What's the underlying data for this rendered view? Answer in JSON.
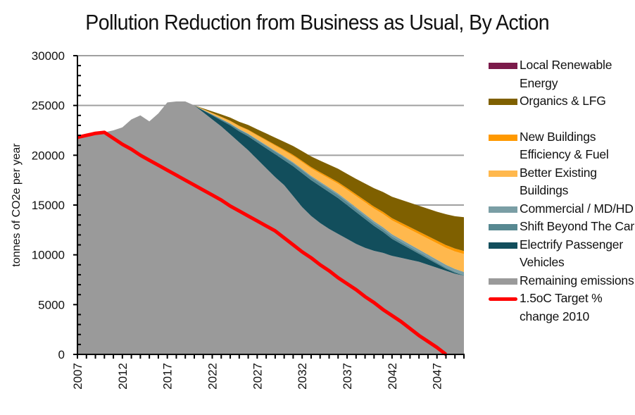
{
  "chart_data": {
    "type": "area",
    "stacked": true,
    "title": "Pollution Reduction from Business as Usual, By Action",
    "xlabel": "",
    "ylabel": "tonnes of CO2e per year",
    "ylim": [
      0,
      30000
    ],
    "yticks": [
      "0",
      "5000",
      "10000",
      "15000",
      "20000",
      "25000",
      "30000"
    ],
    "xlim": [
      2007,
      2050
    ],
    "xticks": [
      "2007",
      "2012",
      "2017",
      "2022",
      "2027",
      "2032",
      "2037",
      "2042",
      "2047"
    ],
    "grid": "horizontal",
    "legend_position": "right",
    "x": [
      2007,
      2008,
      2009,
      2010,
      2011,
      2012,
      2013,
      2014,
      2015,
      2016,
      2017,
      2018,
      2019,
      2020,
      2021,
      2022,
      2023,
      2024,
      2025,
      2026,
      2027,
      2028,
      2029,
      2030,
      2031,
      2032,
      2033,
      2034,
      2035,
      2036,
      2037,
      2038,
      2039,
      2040,
      2041,
      2042,
      2043,
      2044,
      2045,
      2046,
      2047,
      2048,
      2049,
      2050
    ],
    "series": [
      {
        "name": "Remaining emissions",
        "color": "#9a9a9a",
        "values": [
          21700,
          21900,
          22100,
          22300,
          22500,
          22800,
          23600,
          24000,
          23400,
          24200,
          25300,
          25400,
          25400,
          25000,
          24300,
          23600,
          22900,
          22100,
          21300,
          20500,
          19600,
          18700,
          17800,
          17000,
          15900,
          14800,
          13900,
          13200,
          12600,
          12100,
          11600,
          11100,
          10700,
          10400,
          10200,
          9900,
          9700,
          9500,
          9300,
          9000,
          8700,
          8400,
          8100,
          7900
        ]
      },
      {
        "name": "Electrify Passenger Vehicles",
        "color": "#124e5c",
        "values": [
          0,
          0,
          0,
          0,
          0,
          0,
          0,
          0,
          0,
          0,
          0,
          0,
          0,
          0,
          200,
          400,
          600,
          900,
          1100,
          1400,
          1700,
          2000,
          2300,
          2500,
          3000,
          3400,
          3600,
          3700,
          3700,
          3600,
          3400,
          3200,
          2900,
          2500,
          2100,
          1700,
          1400,
          1100,
          800,
          600,
          400,
          200,
          100,
          0
        ]
      },
      {
        "name": "Shift Beyond The Car",
        "color": "#578891",
        "values": [
          0,
          0,
          0,
          0,
          0,
          0,
          0,
          0,
          0,
          0,
          0,
          0,
          0,
          0,
          40,
          80,
          120,
          150,
          180,
          200,
          220,
          240,
          260,
          280,
          290,
          300,
          300,
          300,
          300,
          300,
          300,
          290,
          280,
          270,
          260,
          240,
          220,
          200,
          180,
          160,
          140,
          120,
          100,
          80
        ]
      },
      {
        "name": "Commercial / MD/HD",
        "color": "#7a9ea5",
        "values": [
          0,
          0,
          0,
          0,
          0,
          0,
          0,
          0,
          0,
          0,
          0,
          0,
          0,
          0,
          10,
          20,
          30,
          40,
          50,
          60,
          70,
          80,
          90,
          100,
          110,
          120,
          130,
          140,
          150,
          160,
          170,
          180,
          190,
          200,
          210,
          220,
          230,
          240,
          250,
          260,
          270,
          280,
          290,
          300
        ]
      },
      {
        "name": "Better Existing Buildings",
        "color": "#ffb84d",
        "values": [
          0,
          0,
          0,
          0,
          0,
          0,
          0,
          0,
          0,
          0,
          0,
          0,
          0,
          0,
          60,
          120,
          180,
          230,
          280,
          340,
          390,
          450,
          510,
          570,
          630,
          690,
          750,
          820,
          900,
          980,
          1060,
          1130,
          1200,
          1270,
          1330,
          1400,
          1450,
          1500,
          1550,
          1600,
          1650,
          1700,
          1750,
          1800
        ]
      },
      {
        "name": "New Buildings Efficiency & Fuel",
        "color": "#ff9900",
        "values": [
          0,
          0,
          0,
          0,
          0,
          0,
          0,
          0,
          0,
          0,
          0,
          0,
          0,
          0,
          10,
          20,
          30,
          40,
          50,
          60,
          70,
          80,
          90,
          100,
          110,
          120,
          130,
          140,
          150,
          160,
          170,
          180,
          190,
          200,
          210,
          220,
          230,
          240,
          250,
          260,
          270,
          280,
          290,
          300
        ]
      },
      {
        "name": "Organics & LFG",
        "color": "#7f6000",
        "values": [
          0,
          0,
          0,
          0,
          0,
          0,
          0,
          0,
          0,
          0,
          0,
          0,
          0,
          0,
          80,
          160,
          240,
          320,
          400,
          480,
          560,
          640,
          720,
          800,
          890,
          980,
          1070,
          1160,
          1250,
          1340,
          1430,
          1550,
          1700,
          1850,
          2000,
          2150,
          2300,
          2450,
          2600,
          2750,
          2900,
          3100,
          3250,
          3400
        ]
      },
      {
        "name": "Local Renewable Energy",
        "color": "#7b1b4b",
        "values": [
          0,
          0,
          0,
          0,
          0,
          0,
          0,
          0,
          0,
          0,
          0,
          0,
          0,
          0,
          0,
          0,
          0,
          0,
          0,
          0,
          0,
          0,
          0,
          0,
          0,
          0,
          0,
          0,
          0,
          0,
          0,
          0,
          0,
          0,
          0,
          0,
          0,
          0,
          0,
          0,
          0,
          0,
          0,
          0
        ]
      }
    ],
    "lines": [
      {
        "name": "1.5oC Target % change 2010",
        "color": "#ff0000",
        "values": [
          21800,
          22000,
          22200,
          22300,
          21700,
          21100,
          20600,
          20000,
          19500,
          19000,
          18500,
          18000,
          17500,
          17000,
          16500,
          16000,
          15500,
          14900,
          14400,
          13900,
          13400,
          12900,
          12400,
          11700,
          11000,
          10300,
          9700,
          9000,
          8400,
          7700,
          7100,
          6500,
          5800,
          5200,
          4500,
          3900,
          3300,
          2600,
          1900,
          1300,
          700,
          0,
          0,
          0
        ]
      }
    ],
    "legend": [
      {
        "label": "Local Renewable Energy",
        "kind": "area",
        "color": "#7b1b4b"
      },
      {
        "label": "Organics & LFG",
        "kind": "area",
        "color": "#7f6000"
      },
      {
        "label": "",
        "kind": "spacer",
        "color": ""
      },
      {
        "label": "New Buildings Efficiency & Fuel",
        "kind": "area",
        "color": "#ff9900"
      },
      {
        "label": "Better Existing Buildings",
        "kind": "area",
        "color": "#ffb84d"
      },
      {
        "label": "Commercial / MD/HD",
        "kind": "area",
        "color": "#7a9ea5"
      },
      {
        "label": "Shift Beyond The Car",
        "kind": "area",
        "color": "#578891"
      },
      {
        "label": "Electrify Passenger Vehicles",
        "kind": "area",
        "color": "#124e5c"
      },
      {
        "label": "Remaining emissions",
        "kind": "area",
        "color": "#9a9a9a"
      },
      {
        "label": "1.5oC Target % change 2010",
        "kind": "line",
        "color": "#ff0000"
      }
    ]
  }
}
